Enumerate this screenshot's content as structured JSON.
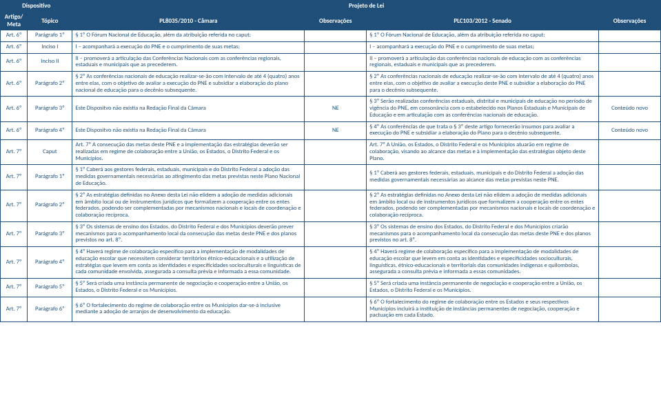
{
  "header": {
    "dispositivo": "Dispositivo",
    "projeto": "Projeto de Lei",
    "artigo_meta": "Artigo/ Meta",
    "topico": "Tópico",
    "camara": "PL8035/2010 - Câmara",
    "obs1": "Observações",
    "senado": "PLC103/2012 - Senado",
    "obs2": "Observações"
  },
  "rows": [
    {
      "art": "Art. 6º",
      "topico": "Parágrafo 1º",
      "camara": "§ 1º O Fórum Nacional de Educação, além da atribuição referida no caput:",
      "obs1": "",
      "senado": "§ 1º O Fórum Nacional de Educação, além da atribuição referida no caput:",
      "obs2": ""
    },
    {
      "art": "Art. 6º",
      "topico": "Inciso I",
      "camara": "I – acompanhará a execução do PNE e o cumprimento de suas metas;",
      "obs1": "",
      "senado": "I – acompanhará a execução do PNE e o cumprimento de suas metas;",
      "obs2": ""
    },
    {
      "art": "Art. 6º",
      "topico": "Inciso II",
      "camara": "II – promoverá a articulação das Conferências Nacionais com as conferências regionais, estaduais e municipais que as precederem.",
      "obs1": "",
      "senado": "II – promoverá a articulação das conferências nacionais de educação com as conferências regionais, estaduais e municipais que as precederem.",
      "obs2": ""
    },
    {
      "art": "Art. 6º",
      "topico": "Parágrafo 2º",
      "camara": "§ 2º As conferências nacionais de educação realizar-se-ão com intervalo de até 4 (quatro) anos entre elas, com o objetivo de avaliar a execução do PNE e subsidiar a elaboração do plano nacional de educação para o decênio subsequente.",
      "obs1": "",
      "senado": "§ 2º As conferências nacionais de educação realizar-se-ão com intervalo de até 4 (quatro) anos entre elas, com o objetivo de avaliar a execução deste PNE e subsidiar a elaboração do PNE para o decênio subsequente.",
      "obs2": ""
    },
    {
      "art": "Art. 6º",
      "topico": "Parágrafo 3º",
      "camara": "Este Dispositvo não existia na Redação Final da Câmara",
      "obs1": "NE",
      "senado": "§ 3º Serão realizadas conferências estaduais, distrital e municipais de educação no período de vigência do PNE, em consonância com o estabelecido nos Planos Estaduais e Municipais de Educação e em articulação com as conferências nacionais de educação.",
      "obs2": "Conteúdo novo"
    },
    {
      "art": "Art. 6º",
      "topico": "Parágrafo 4º",
      "camara": "Este Dispositvo não existia na Redação Final da Câmara",
      "obs1": "NE",
      "senado": "§ 4º As conferências de que trata o § 3º deste artigo fornecerão insumos para avaliar a execução do PNE e subsidiar a elaboração do Plano para o decênio subsequente.",
      "obs2": "Conteúdo novo"
    },
    {
      "art": "Art. 7º",
      "topico": "Caput",
      "camara": "Art. 7º A consecução das metas deste PNE e a implementação das estratégias deverão ser realizadas em regime de colaboração entre a União, os Estados, o Distrito Federal e os Municípios.",
      "obs1": "",
      "senado": "Art. 7º A União, os Estados, o Distrito Federal e os Municípios atuarão em regime de colaboração, visando ao alcance das metas e à implementação das estratégias objeto deste Plano.",
      "obs2": ""
    },
    {
      "art": "Art. 7º",
      "topico": "Parágrafo 1º",
      "camara": "§ 1º Caberá aos gestores federais, estaduais, municipais e do Distrito Federal a adoção das medidas governamentais necessárias ao atingimento das metas previstas neste Plano Nacional de Educação.",
      "obs1": "",
      "senado": "§ 1º Caberá aos gestores federais, estaduais, municipais e do Distrito Federal a adoção das medidas governamentais necessárias ao alcance das metas previstas neste PNE.",
      "obs2": ""
    },
    {
      "art": "Art. 7º",
      "topico": "Parágrafo 2º",
      "camara": "§ 2º As estratégias definidas no Anexo desta Lei não elidem a adoção de medidas adicionais em âmbito local ou de instrumentos jurídicos que formalizem a cooperação entre os entes federados, podendo ser complementadas por mecanismos nacionais e locais de coordenação e colaboração recíproca.",
      "obs1": "",
      "senado": "§ 2º As estratégias definidas no Anexo desta Lei não elidem a adoção de medidas adicionais em âmbito local ou de instrumentos jurídicos que formalizem a cooperação entre os entes federados, podendo ser complementadas por mecanismos nacionais e locais de coordenação e colaboração recíproca.",
      "obs2": ""
    },
    {
      "art": "Art. 7º",
      "topico": "Parágrafo 3º",
      "camara": "§ 3º Os sistemas de ensino dos Estados, do Distrito Federal e dos Municípios deverão prever mecanismos para o acompanhamento local da consecução das metas deste PNE e dos planos previstos no art. 8º.",
      "obs1": "",
      "senado": "§ 3º Os sistemas de ensino dos Estados, do Distrito Federal e dos Municípios criarão mecanismos para o acompanhamento local da consecução das metas deste PNE e dos planos previstos no art. 8º.",
      "obs2": ""
    },
    {
      "art": "Art. 7º",
      "topico": "Parágrafo 4º",
      "camara": "§ 4º Haverá regime de colaboração específico para a implementação de modalidades de educação escolar que necessitem considerar territórios étnico-educacionais e a utilização de estratégias que levem em conta as identidades e especificidades socioculturais e linguísticas de cada comunidade envolvida, assegurada a consulta prévia e informada a essa comunidade.",
      "obs1": "",
      "senado": "§ 4º Haverá regime de colaboração específico para a implementação de modalidades de educação escolar que levem em conta as identidades e especificidades socioculturais, linguísticas, étnico-educacionais e territoriais das comunidades indígenas e quilombolas, assegurada a consulta prévia e informada a essas comunidades.",
      "obs2": ""
    },
    {
      "art": "Art. 7º",
      "topico": "Parágrafo 5º",
      "camara": "§ 5º Será criada uma instância permanente de negociação e cooperação entre a União, os Estados, o Distrito Federal e os Municípios.",
      "obs1": "",
      "senado": "§ 5º Será criada uma instância permanente de negociação e cooperação entre a União, os Estados, o Distrito Federal e os Municípios.",
      "obs2": ""
    },
    {
      "art": "Art. 7º",
      "topico": "Parágrafo 6º",
      "camara": "§ 6º O fortalecimento do regime de colaboração entre os Municípios dar-se-á inclusive mediante a adoção de arranjos de desenvolvimento da educação.",
      "obs1": "",
      "senado": "§ 6º O fortalecimento do regime de colaboração entre os Estados e seus respectivos Municípios incluirá a instituição de instâncias permanentes de negociação, cooperação e pactuação em cada Estado.",
      "obs2": ""
    }
  ]
}
